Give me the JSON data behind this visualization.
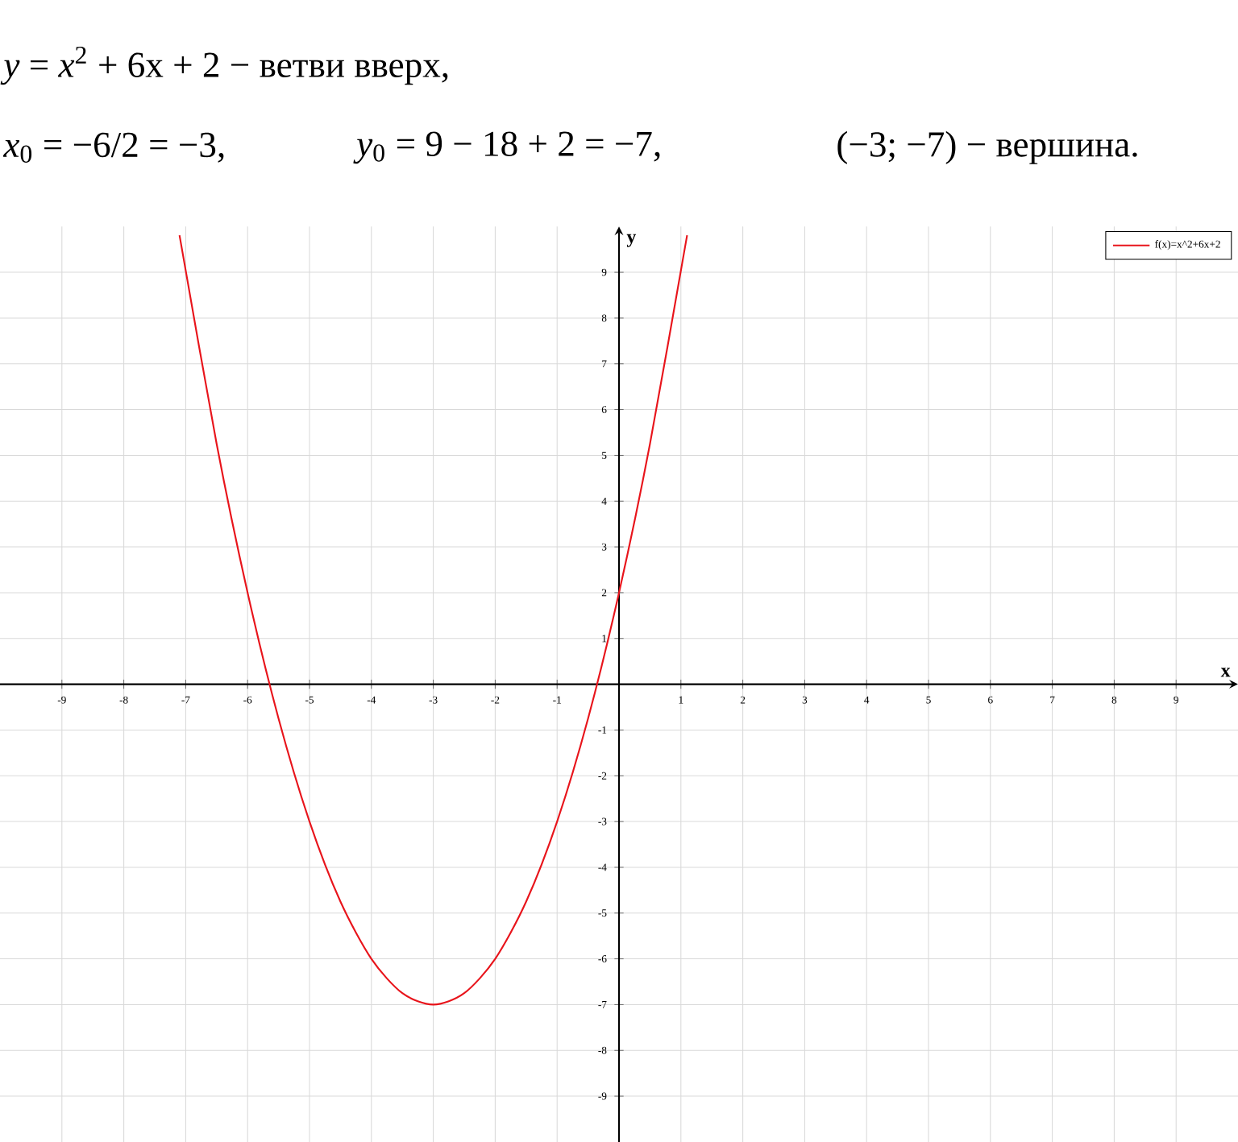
{
  "chart_data": {
    "type": "line",
    "annotations": [
      "*y* = *x*$^{2}$ + 6x + 2 − ветви вверх,",
      "*x*$_{0}$ = −6/2 = −3,",
      "*y*$_{0}$ = 9 − 18 + 2 = −7,",
      "(−3; −7) − вершина."
    ],
    "xlabel": "x",
    "ylabel": "y",
    "x": [
      -7.1,
      -6.5,
      -6,
      -5.5,
      -5,
      -4.5,
      -4,
      -3.5,
      -3,
      -2.5,
      -2,
      -1.5,
      -1,
      -0.5,
      0,
      0.5,
      1.1
    ],
    "series": [
      {
        "name": "f(x)=x^2+6x+2",
        "color": "#e8141b",
        "values": [
          9.81,
          5.25,
          2,
          -0.75,
          -3,
          -4.75,
          -6,
          -6.75,
          -7,
          -6.75,
          -6,
          -4.75,
          -3,
          -0.75,
          2,
          5.25,
          9.81
        ]
      }
    ],
    "xlim": [
      -10,
      10
    ],
    "ylim": [
      -10,
      10
    ],
    "xticks": [
      -9,
      -8,
      -7,
      -6,
      -5,
      -4,
      -3,
      -2,
      -1,
      1,
      2,
      3,
      4,
      5,
      6,
      7,
      8,
      9
    ],
    "yticks": [
      -9,
      -8,
      -7,
      -6,
      -5,
      -4,
      -3,
      -2,
      -1,
      1,
      2,
      3,
      4,
      5,
      6,
      7,
      8,
      9
    ],
    "grid": true,
    "legend": "top right",
    "marker": "none"
  }
}
